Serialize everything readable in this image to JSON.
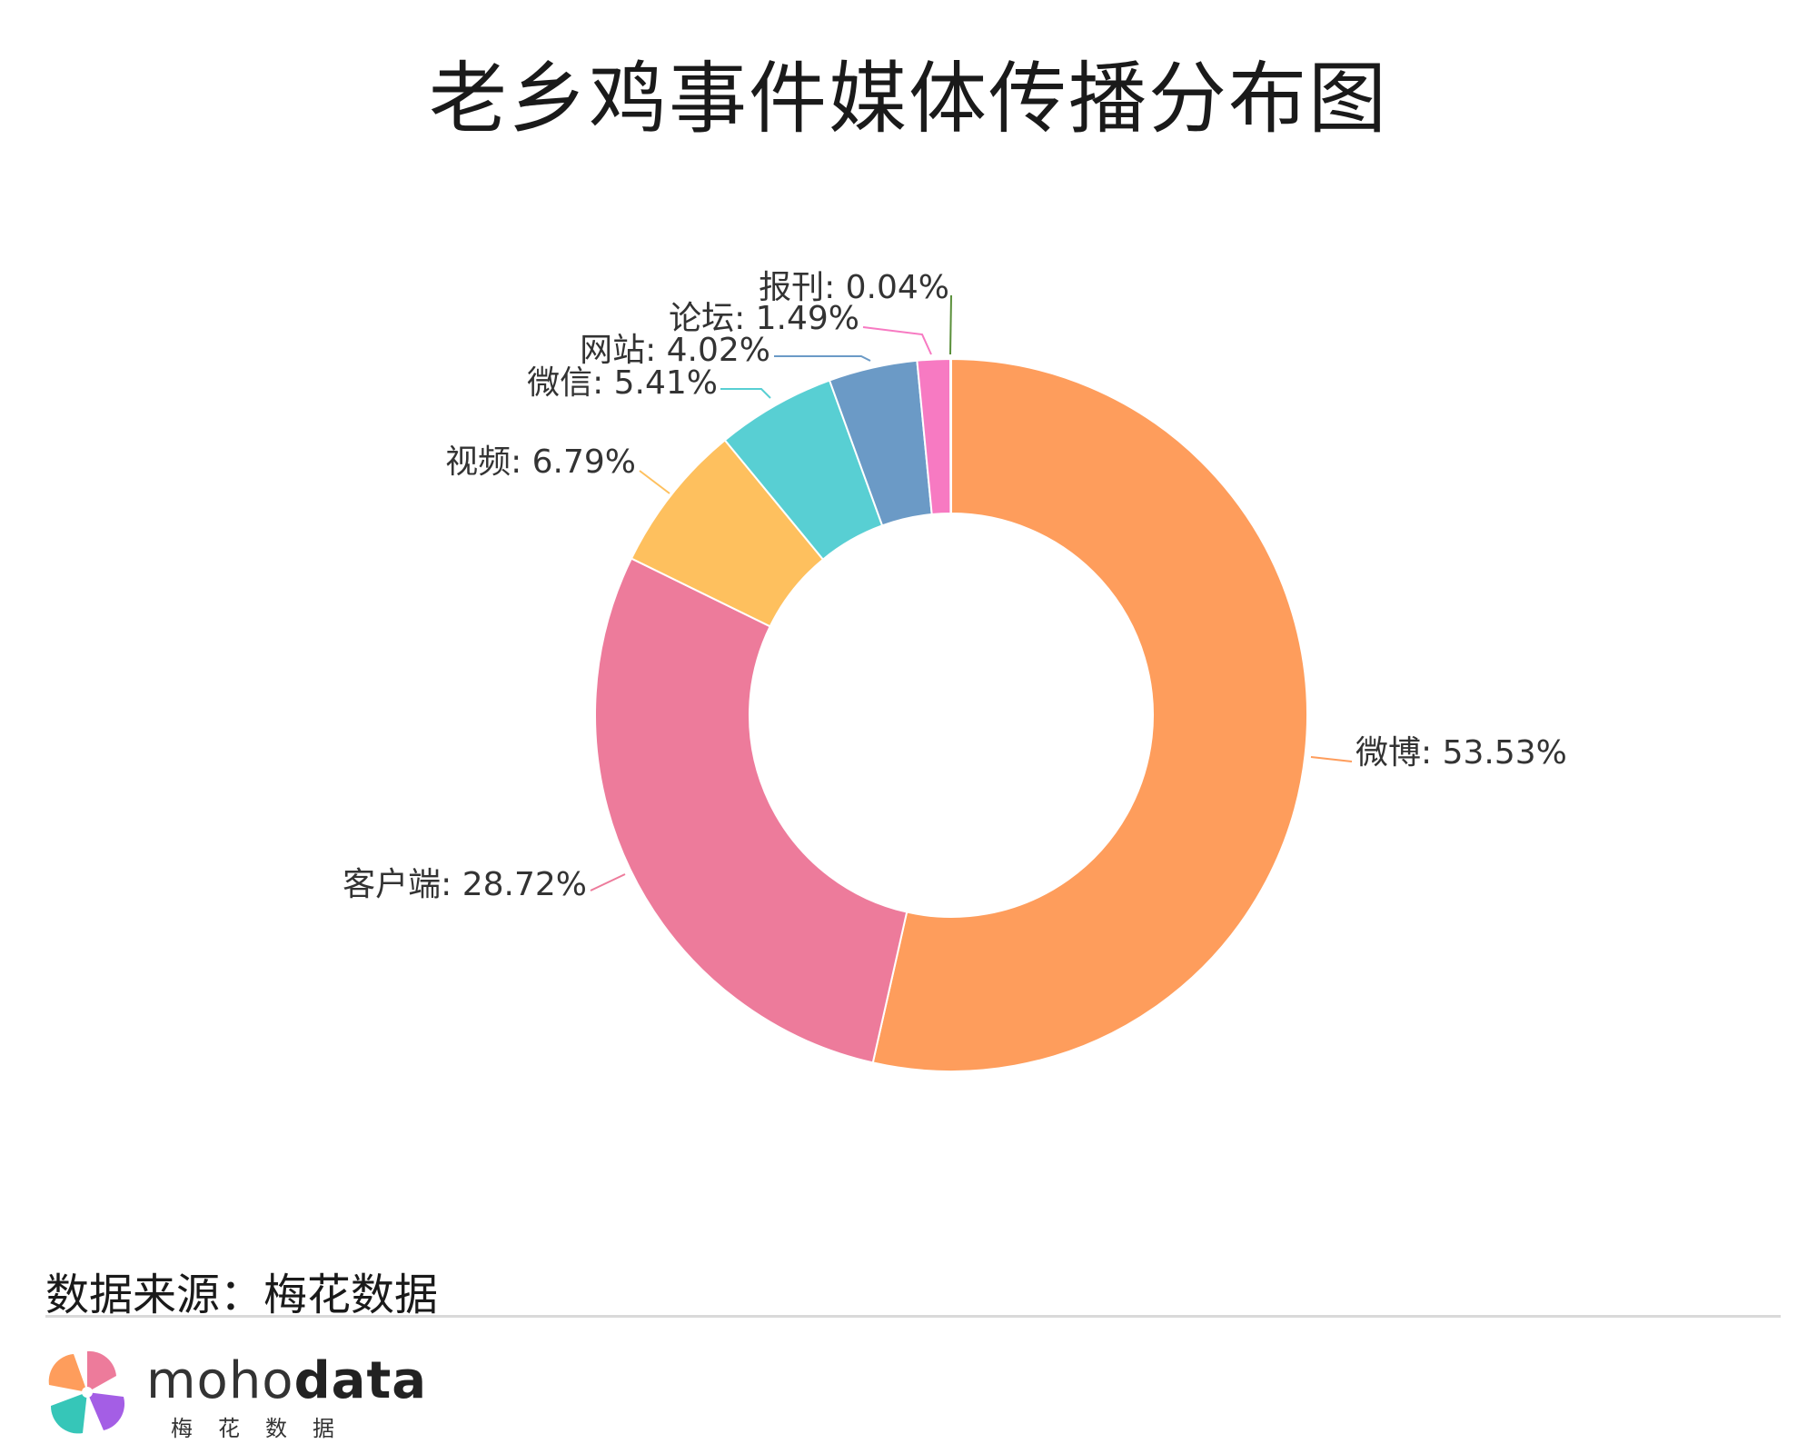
{
  "title": "老乡鸡事件媒体传播分布图",
  "source": "数据来源：梅花数据",
  "brand": {
    "word_light": "moho",
    "word_bold": "data",
    "subtitle": "梅花数据"
  },
  "chart_data": {
    "type": "pie",
    "style": "donut",
    "title": "老乡鸡事件媒体传播分布图",
    "slices": [
      {
        "label": "微博",
        "value": 53.53,
        "text": "微博: 53.53%",
        "color": "#fe9d5c"
      },
      {
        "label": "客户端",
        "value": 28.72,
        "text": "客户端: 28.72%",
        "color": "#ed7b9b"
      },
      {
        "label": "视频",
        "value": 6.79,
        "text": "视频: 6.79%",
        "color": "#fec05e"
      },
      {
        "label": "微信",
        "value": 5.41,
        "text": "微信: 5.41%",
        "color": "#58cfd3"
      },
      {
        "label": "网站",
        "value": 4.02,
        "text": "网站: 4.02%",
        "color": "#6b9ac6"
      },
      {
        "label": "论坛",
        "value": 1.49,
        "text": "论坛: 1.49%",
        "color": "#f77ac2"
      },
      {
        "label": "报刊",
        "value": 0.04,
        "text": "报刊: 0.04%",
        "color": "#5a8f3a"
      }
    ]
  }
}
